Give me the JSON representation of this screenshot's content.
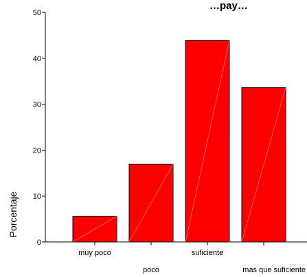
{
  "chart_data": {
    "type": "bar",
    "title": "…pay…",
    "ylabel": "Porcentaje",
    "xlabel": "",
    "categories": [
      "muy poco",
      "poco",
      "suficiente",
      "mas que suficiente"
    ],
    "values": [
      5.6,
      16.9,
      43.9,
      33.6
    ],
    "ylim": [
      0,
      50
    ],
    "yticks": [
      0,
      10,
      20,
      30,
      40,
      50
    ],
    "grid": false,
    "legend": "none",
    "colors": {
      "bar_fill": "#ff0000",
      "bar_stroke": "#000000",
      "axis": "#000000",
      "background": "#ffffff"
    }
  }
}
